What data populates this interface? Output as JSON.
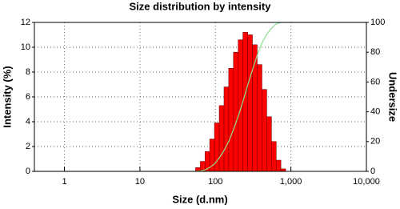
{
  "chart_data": {
    "type": "histogram",
    "title": "Size distribution by intensity",
    "xlabel": "Size (d.nm)",
    "ylabel": "Intensity (%)",
    "y2label": "Undersize",
    "xlog": true,
    "grid": true,
    "bins": [
      54.6,
      63.1,
      72.8,
      84.1,
      97.2,
      112.4,
      130.0,
      150.0,
      173.4,
      200.4,
      231.7,
      267.9,
      309.0,
      357.3,
      413.0,
      477.5,
      552.1,
      638.3,
      736.2,
      851.1
    ],
    "values": [
      0.3,
      0.8,
      1.6,
      2.6,
      3.9,
      5.3,
      6.8,
      8.3,
      9.6,
      10.6,
      11.2,
      11.0,
      10.2,
      8.6,
      6.6,
      4.4,
      2.4,
      0.9,
      0.2
    ],
    "color": "#ff0000",
    "undersize": {
      "x": [
        0.4,
        54.6,
        63.1,
        72.8,
        84.1,
        97.2,
        112.4,
        130.0,
        150.0,
        173.4,
        200.4,
        231.7,
        267.9,
        309.0,
        357.3,
        413.0,
        477.5,
        552.1,
        638.3,
        736.2,
        10000
      ],
      "values": [
        0,
        0,
        0.3,
        1,
        2.6,
        5,
        9,
        14,
        20,
        28,
        37,
        47,
        58,
        68,
        78,
        86,
        92,
        96,
        99,
        100,
        100
      ],
      "color": "#8fe08f",
      "axis": "y2"
    },
    "xlim": [
      0.4,
      10000
    ],
    "xticks": [
      1,
      10,
      100,
      {
        "value": 1000,
        "label": "1,000"
      },
      {
        "value": 10000,
        "label": "10,000"
      }
    ],
    "ylim": [
      0,
      12
    ],
    "yticks": [
      0,
      2,
      4,
      6,
      8,
      10,
      12
    ],
    "y2lim": [
      0,
      100
    ],
    "y2ticks": [
      0,
      20,
      40,
      60,
      80,
      100
    ]
  }
}
